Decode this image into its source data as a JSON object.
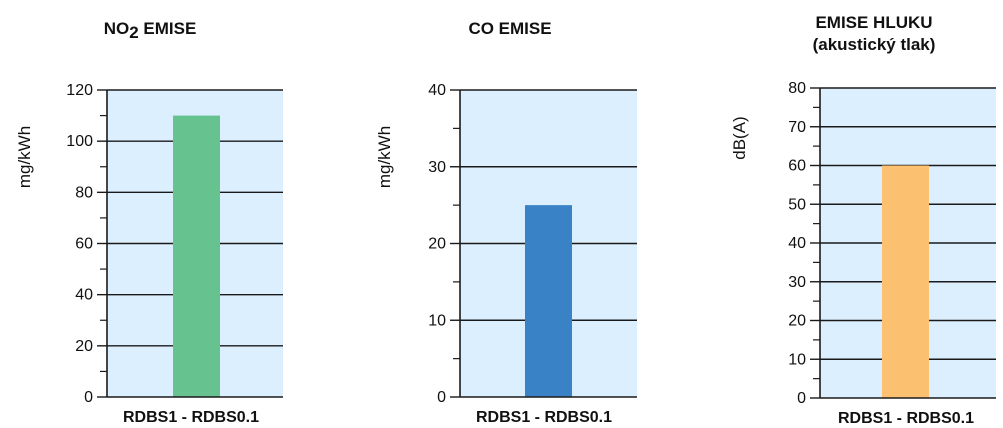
{
  "chart_data": [
    {
      "type": "bar",
      "title": "NO2 EMISE",
      "title_lines": [
        "NO2 EMISE"
      ],
      "ylabel": "mg/kWh",
      "categories": [
        "RDBS1 - RDBS0.1"
      ],
      "values": [
        110
      ],
      "ylim": [
        0,
        120
      ],
      "yticks": [
        0,
        20,
        40,
        60,
        80,
        100,
        120
      ],
      "minor_step": 10,
      "grid": true,
      "color": "#66c28e",
      "background": "#dcefff"
    },
    {
      "type": "bar",
      "title": "CO EMISE",
      "title_lines": [
        "CO EMISE"
      ],
      "ylabel": "mg/kWh",
      "categories": [
        "RDBS1 - RDBS0.1"
      ],
      "values": [
        25
      ],
      "ylim": [
        0,
        40
      ],
      "yticks": [
        0,
        10,
        20,
        30,
        40
      ],
      "minor_step": 5,
      "grid": true,
      "color": "#3a82c6",
      "background": "#dcefff"
    },
    {
      "type": "bar",
      "title": "EMISE HLUKU (akustický tlak)",
      "title_lines": [
        "EMISE HLUKU",
        "(akustický tlak)"
      ],
      "ylabel": "dB(A)",
      "categories": [
        "RDBS1 - RDBS0.1"
      ],
      "values": [
        60
      ],
      "ylim": [
        0,
        80
      ],
      "yticks": [
        0,
        10,
        20,
        30,
        40,
        50,
        60,
        70,
        80
      ],
      "minor_step": 5,
      "grid": true,
      "color": "#fcc071",
      "background": "#dcefff"
    }
  ]
}
